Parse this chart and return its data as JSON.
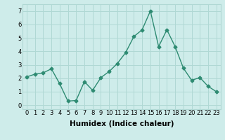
{
  "x": [
    0,
    1,
    2,
    3,
    4,
    5,
    6,
    7,
    8,
    9,
    10,
    11,
    12,
    13,
    14,
    15,
    16,
    17,
    18,
    19,
    20,
    21,
    22,
    23
  ],
  "y": [
    2.1,
    2.3,
    2.4,
    2.7,
    1.6,
    0.3,
    0.35,
    1.75,
    1.1,
    2.05,
    2.5,
    3.1,
    3.9,
    5.1,
    5.6,
    7.0,
    4.35,
    5.6,
    4.35,
    2.75,
    1.85,
    2.05,
    1.4,
    1.0
  ],
  "line_color": "#2e8b72",
  "marker": "D",
  "markersize": 2.5,
  "linewidth": 1.0,
  "xlabel": "Humidex (Indice chaleur)",
  "xlim": [
    -0.5,
    23.5
  ],
  "ylim": [
    -0.3,
    7.5
  ],
  "xticks": [
    0,
    1,
    2,
    3,
    4,
    5,
    6,
    7,
    8,
    9,
    10,
    11,
    12,
    13,
    14,
    15,
    16,
    17,
    18,
    19,
    20,
    21,
    22,
    23
  ],
  "yticks": [
    0,
    1,
    2,
    3,
    4,
    5,
    6,
    7
  ],
  "bg_color": "#ceecea",
  "grid_color": "#b0d8d4",
  "xlabel_fontsize": 7.5,
  "tick_fontsize": 6.0
}
